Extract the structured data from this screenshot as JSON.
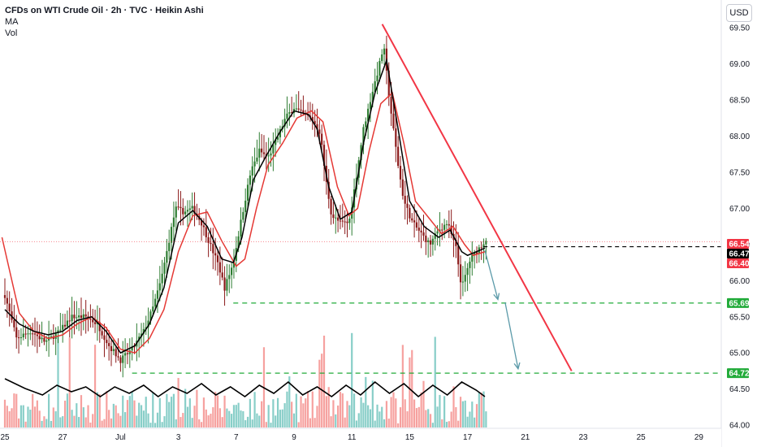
{
  "legend": {
    "title": "CFDs on WTI Crude Oil · 2h · TVC · Heikin Ashi",
    "ma": "MA",
    "vol": "Vol"
  },
  "currency": "USD",
  "chart_data": {
    "type": "candlestick",
    "title": "CFDs on WTI Crude Oil · 2h · TVC · Heikin Ashi",
    "ylim": [
      63.9,
      69.75
    ],
    "x_range_days": [
      -0.1,
      30.4
    ],
    "grid": false,
    "colors": {
      "up": "#26a69a",
      "up_candle": "#2e7d32",
      "down": "#ef5350",
      "down_candle": "#8b1a1a",
      "ma_fast": "#000000",
      "ma_slow": "#e53935",
      "trend": "#f23645",
      "support": "#22ab3a",
      "arrow": "#5b9aa9"
    },
    "x_ticks": [
      {
        "day": 0,
        "label": "25"
      },
      {
        "day": 2,
        "label": "27"
      },
      {
        "day": 4,
        "label": "Jul"
      },
      {
        "day": 6,
        "label": "3"
      },
      {
        "day": 8,
        "label": "7"
      },
      {
        "day": 10,
        "label": "9"
      },
      {
        "day": 12,
        "label": "11"
      },
      {
        "day": 14,
        "label": "15"
      },
      {
        "day": 16,
        "label": "17"
      },
      {
        "day": 18,
        "label": "21"
      },
      {
        "day": 20,
        "label": "23"
      },
      {
        "day": 22,
        "label": "25"
      },
      {
        "day": 24,
        "label": "29"
      }
    ],
    "y_ticks": [
      "69.50",
      "69.00",
      "68.50",
      "68.00",
      "67.50",
      "67.00",
      "66.50",
      "66.00",
      "65.50",
      "65.00",
      "64.50",
      "64.00"
    ],
    "price_path": [
      [
        0.0,
        65.8
      ],
      [
        0.4,
        65.2
      ],
      [
        0.9,
        65.3
      ],
      [
        1.4,
        65.15
      ],
      [
        1.9,
        65.3
      ],
      [
        2.3,
        65.5
      ],
      [
        2.8,
        65.5
      ],
      [
        3.2,
        65.4
      ],
      [
        3.6,
        65.1
      ],
      [
        4.0,
        64.9
      ],
      [
        4.4,
        65.05
      ],
      [
        4.8,
        65.3
      ],
      [
        5.1,
        65.6
      ],
      [
        5.4,
        66.0
      ],
      [
        5.7,
        66.6
      ],
      [
        5.9,
        67.0
      ],
      [
        6.2,
        66.95
      ],
      [
        6.5,
        67.0
      ],
      [
        6.8,
        66.8
      ],
      [
        7.1,
        66.5
      ],
      [
        7.4,
        66.2
      ],
      [
        7.6,
        65.9
      ],
      [
        7.9,
        66.25
      ],
      [
        8.2,
        66.9
      ],
      [
        8.5,
        67.5
      ],
      [
        8.8,
        67.8
      ],
      [
        9.1,
        67.7
      ],
      [
        9.4,
        67.95
      ],
      [
        9.7,
        68.25
      ],
      [
        10.0,
        68.4
      ],
      [
        10.3,
        68.3
      ],
      [
        10.6,
        68.25
      ],
      [
        10.9,
        68.05
      ],
      [
        11.1,
        67.4
      ],
      [
        11.3,
        66.9
      ],
      [
        11.6,
        66.8
      ],
      [
        11.9,
        66.8
      ],
      [
        12.1,
        67.3
      ],
      [
        12.4,
        68.1
      ],
      [
        12.7,
        68.6
      ],
      [
        12.9,
        68.9
      ],
      [
        13.1,
        69.25
      ],
      [
        13.3,
        68.5
      ],
      [
        13.6,
        67.6
      ],
      [
        13.8,
        67.1
      ],
      [
        14.1,
        66.8
      ],
      [
        14.4,
        66.65
      ],
      [
        14.7,
        66.5
      ],
      [
        15.0,
        66.7
      ],
      [
        15.3,
        66.8
      ],
      [
        15.6,
        66.45
      ],
      [
        15.8,
        65.9
      ],
      [
        16.1,
        66.3
      ],
      [
        16.4,
        66.45
      ],
      [
        16.7,
        66.6
      ]
    ],
    "ma_fast": [
      [
        0.0,
        65.6
      ],
      [
        0.5,
        65.4
      ],
      [
        1.0,
        65.3
      ],
      [
        1.5,
        65.25
      ],
      [
        2.0,
        65.3
      ],
      [
        2.5,
        65.45
      ],
      [
        3.0,
        65.5
      ],
      [
        3.5,
        65.3
      ],
      [
        4.0,
        65.0
      ],
      [
        4.5,
        65.1
      ],
      [
        5.0,
        65.4
      ],
      [
        5.5,
        65.9
      ],
      [
        6.0,
        66.8
      ],
      [
        6.5,
        66.97
      ],
      [
        7.0,
        66.75
      ],
      [
        7.5,
        66.3
      ],
      [
        7.9,
        66.25
      ],
      [
        8.2,
        66.6
      ],
      [
        8.6,
        67.4
      ],
      [
        9.0,
        67.7
      ],
      [
        9.5,
        68.05
      ],
      [
        10.0,
        68.35
      ],
      [
        10.5,
        68.3
      ],
      [
        10.8,
        68.1
      ],
      [
        11.2,
        67.3
      ],
      [
        11.6,
        66.85
      ],
      [
        12.0,
        66.95
      ],
      [
        12.4,
        67.9
      ],
      [
        12.8,
        68.6
      ],
      [
        13.2,
        69.05
      ],
      [
        13.6,
        68.1
      ],
      [
        14.0,
        67.1
      ],
      [
        14.5,
        66.75
      ],
      [
        15.0,
        66.6
      ],
      [
        15.4,
        66.7
      ],
      [
        15.8,
        66.4
      ],
      [
        16.0,
        66.35
      ],
      [
        16.3,
        66.4
      ],
      [
        16.6,
        66.45
      ]
    ],
    "ma_slow": [
      [
        -0.1,
        66.6
      ],
      [
        0.5,
        65.55
      ],
      [
        1.0,
        65.3
      ],
      [
        1.5,
        65.2
      ],
      [
        2.0,
        65.25
      ],
      [
        2.5,
        65.4
      ],
      [
        3.0,
        65.5
      ],
      [
        3.5,
        65.35
      ],
      [
        4.0,
        65.05
      ],
      [
        4.5,
        65.0
      ],
      [
        5.0,
        65.2
      ],
      [
        5.5,
        65.6
      ],
      [
        6.0,
        66.4
      ],
      [
        6.5,
        66.9
      ],
      [
        7.0,
        66.95
      ],
      [
        7.5,
        66.55
      ],
      [
        8.0,
        66.2
      ],
      [
        8.3,
        66.3
      ],
      [
        8.7,
        67.0
      ],
      [
        9.1,
        67.6
      ],
      [
        9.6,
        67.9
      ],
      [
        10.1,
        68.25
      ],
      [
        10.6,
        68.35
      ],
      [
        11.0,
        68.2
      ],
      [
        11.5,
        67.3
      ],
      [
        11.9,
        66.9
      ],
      [
        12.2,
        67.0
      ],
      [
        12.6,
        67.8
      ],
      [
        13.0,
        68.45
      ],
      [
        13.4,
        68.6
      ],
      [
        13.8,
        67.9
      ],
      [
        14.2,
        67.1
      ],
      [
        14.7,
        66.85
      ],
      [
        15.1,
        66.65
      ],
      [
        15.5,
        66.75
      ],
      [
        15.9,
        66.5
      ],
      [
        16.2,
        66.35
      ],
      [
        16.6,
        66.4
      ]
    ],
    "vol_ma": [
      [
        0.0,
        60
      ],
      [
        0.7,
        48
      ],
      [
        1.3,
        40
      ],
      [
        1.8,
        52
      ],
      [
        2.3,
        44
      ],
      [
        2.8,
        50
      ],
      [
        3.3,
        38
      ],
      [
        3.8,
        50
      ],
      [
        4.3,
        42
      ],
      [
        4.8,
        52
      ],
      [
        5.3,
        38
      ],
      [
        5.8,
        50
      ],
      [
        6.3,
        42
      ],
      [
        6.8,
        54
      ],
      [
        7.3,
        40
      ],
      [
        7.8,
        50
      ],
      [
        8.3,
        38
      ],
      [
        8.8,
        52
      ],
      [
        9.3,
        42
      ],
      [
        9.8,
        56
      ],
      [
        10.3,
        40
      ],
      [
        10.8,
        50
      ],
      [
        11.3,
        38
      ],
      [
        11.8,
        52
      ],
      [
        12.3,
        40
      ],
      [
        12.8,
        56
      ],
      [
        13.3,
        42
      ],
      [
        13.8,
        54
      ],
      [
        14.3,
        38
      ],
      [
        14.8,
        52
      ],
      [
        15.3,
        40
      ],
      [
        15.8,
        56
      ],
      [
        16.3,
        46
      ],
      [
        16.6,
        38
      ]
    ],
    "price_line_value": 66.54,
    "current_line_value": 66.47,
    "support_lines": [
      65.69,
      64.72
    ],
    "trendline": [
      [
        13.05,
        69.55
      ],
      [
        19.6,
        64.75
      ]
    ],
    "projection_arrows": [
      [
        [
          16.6,
          66.42
        ],
        [
          17.05,
          65.74
        ]
      ],
      [
        [
          17.3,
          65.7
        ],
        [
          17.75,
          64.78
        ]
      ]
    ],
    "price_badges": [
      {
        "label": "66.54",
        "value": 66.54,
        "color": "#f23645"
      },
      {
        "label": "66.47",
        "value": 66.47,
        "color": "#000000"
      },
      {
        "label": "66.40",
        "value": 66.4,
        "color": "#f23645"
      },
      {
        "label": "65.69",
        "value": 65.69,
        "color": "#22ab3a"
      },
      {
        "label": "64.72",
        "value": 64.72,
        "color": "#22ab3a"
      }
    ]
  }
}
